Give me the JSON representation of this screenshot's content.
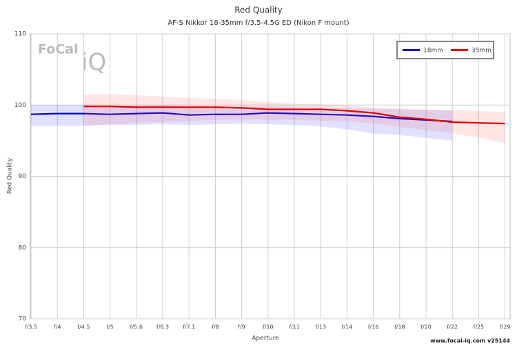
{
  "chart_data": {
    "type": "line",
    "title": "Red Quality",
    "subtitle": "AF-S Nikkor 18-35mm f/3.5-4.5G ED (Nikon F mount)",
    "x_label": "Aperture",
    "y_label": "Red Quality",
    "watermark": [
      "FoCal",
      "iQ"
    ],
    "footer": "www.focal-iq.com  v25144",
    "categories": [
      "f/3.5",
      "f/4",
      "f/4.5",
      "f/5",
      "f/5.6",
      "f/6.3",
      "f/7.1",
      "f/8",
      "f/9",
      "f/10",
      "f/11",
      "f/13",
      "f/14",
      "f/16",
      "f/18",
      "f/20",
      "f/22",
      "f/25",
      "f/29"
    ],
    "ylim": [
      70,
      110
    ],
    "yticks": [
      70,
      80,
      90,
      100,
      110
    ],
    "grid": true,
    "legend": "top-right",
    "series": [
      {
        "name": "18mm",
        "color": "#0000cc",
        "band_color": "rgba(90,90,255,0.18)",
        "values": [
          98.7,
          98.8,
          98.8,
          98.7,
          98.8,
          98.9,
          98.6,
          98.7,
          98.7,
          98.9,
          98.8,
          98.7,
          98.6,
          98.4,
          98.1,
          97.9,
          97.7,
          null,
          null
        ],
        "high": [
          100.0,
          100.0,
          100.0,
          99.9,
          99.9,
          100.0,
          99.8,
          99.8,
          99.8,
          99.8,
          99.7,
          99.6,
          99.5,
          99.5,
          99.4,
          99.3,
          99.2,
          null,
          null
        ],
        "low": [
          97.1,
          97.1,
          97.1,
          97.2,
          97.2,
          97.3,
          97.2,
          97.3,
          97.4,
          97.3,
          97.2,
          97.0,
          96.6,
          96.0,
          95.8,
          95.4,
          95.0,
          null,
          null
        ]
      },
      {
        "name": "35mm",
        "color": "#e00000",
        "band_color": "rgba(255,90,90,0.15)",
        "values": [
          null,
          null,
          99.8,
          99.8,
          99.7,
          99.7,
          99.7,
          99.7,
          99.6,
          99.4,
          99.4,
          99.4,
          99.2,
          98.9,
          98.3,
          98.0,
          97.6,
          97.5,
          97.4
        ],
        "high": [
          null,
          null,
          101.5,
          101.5,
          101.4,
          101.2,
          101.0,
          100.9,
          100.7,
          100.4,
          100.2,
          100.1,
          99.9,
          99.7,
          99.5,
          99.4,
          99.3,
          99.2,
          99.0
        ],
        "low": [
          null,
          null,
          97.1,
          97.3,
          97.5,
          97.6,
          97.7,
          97.9,
          98.0,
          97.9,
          97.9,
          97.8,
          97.7,
          97.4,
          96.9,
          96.5,
          96.0,
          95.4,
          94.6
        ]
      }
    ]
  }
}
